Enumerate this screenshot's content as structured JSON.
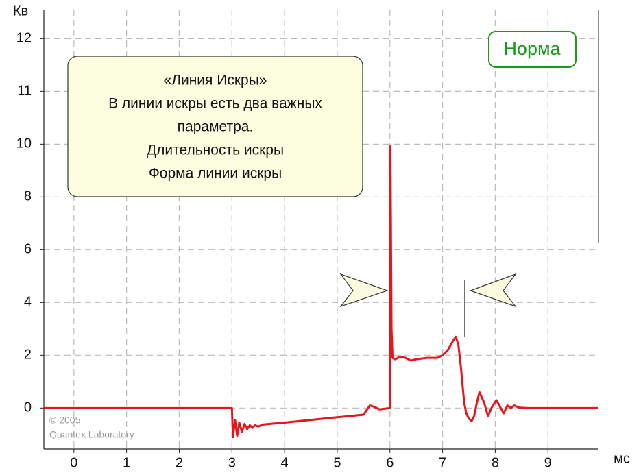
{
  "chart_data": {
    "type": "line",
    "x_label": "мс",
    "y_label": "Кв",
    "badge": "Норма",
    "annotation": [
      "«Линия Искры»",
      "В линии искры есть два важных",
      "параметра.",
      "Длительность искры",
      "Форма линии искры"
    ],
    "credits": [
      "© 2005",
      "Quantex Laboratory"
    ],
    "x": [
      -0.57,
      3.0,
      3.02,
      3.06,
      3.1,
      3.14,
      3.19,
      3.24,
      3.29,
      3.34,
      3.39,
      3.44,
      3.5,
      3.6,
      4.0,
      4.5,
      5.0,
      5.5,
      5.55,
      5.62,
      5.7,
      5.8,
      6.0,
      6.01,
      6.03,
      6.05,
      6.1,
      6.2,
      6.3,
      6.4,
      6.5,
      6.7,
      6.9,
      7.0,
      7.1,
      7.2,
      7.25,
      7.3,
      7.35,
      7.41,
      7.45,
      7.5,
      7.55,
      7.6,
      7.65,
      7.7,
      7.79,
      7.86,
      7.94,
      8.02,
      8.09,
      8.16,
      8.23,
      8.3,
      8.36,
      8.45,
      8.6,
      9.96
    ],
    "series": [
      {
        "color": "#e8141c",
        "values": [
          0,
          0,
          -1.1,
          -0.45,
          -1.05,
          -0.55,
          -0.9,
          -0.6,
          -0.8,
          -0.65,
          -0.75,
          -0.65,
          -0.7,
          -0.62,
          -0.55,
          -0.45,
          -0.35,
          -0.25,
          -0.1,
          0.1,
          0.05,
          -0.05,
          0,
          9.92,
          3,
          1.9,
          1.85,
          1.95,
          1.9,
          1.8,
          1.85,
          1.9,
          1.9,
          2.0,
          2.2,
          2.55,
          2.7,
          2.4,
          1.5,
          0.2,
          -0.2,
          -0.4,
          -0.5,
          -0.3,
          0.2,
          0.6,
          0.2,
          -0.3,
          0.05,
          0.3,
          0.05,
          -0.2,
          0.1,
          0.0,
          0.1,
          0.02,
          0,
          0
        ]
      }
    ],
    "xlim": [
      -0.57,
      9.96
    ],
    "ylim": [
      -1.55,
      12.55
    ],
    "xticks": [
      0,
      1,
      2,
      3,
      4,
      5,
      6,
      7,
      8,
      9
    ],
    "yticks": [
      0,
      2,
      4,
      6,
      8,
      10,
      11,
      12
    ],
    "grid": true
  }
}
